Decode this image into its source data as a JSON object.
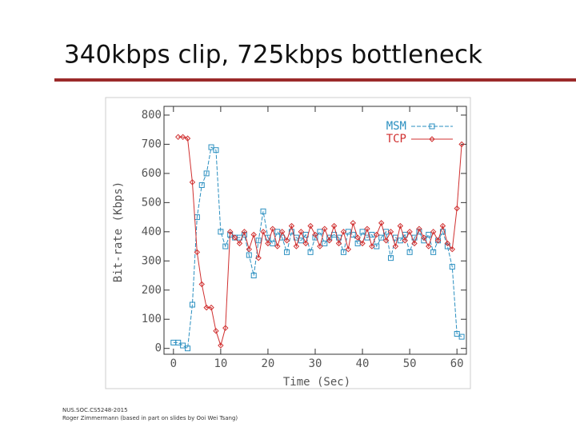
{
  "slide": {
    "title": "340kbps clip, 725kbps bottleneck",
    "footer": [
      "NUS.SOC.CS5248-2015",
      "Roger Zimmermann (based in part on slides by Ooi Wei Tsang)"
    ]
  },
  "chart_data": {
    "type": "line",
    "xlabel": "Time (Sec)",
    "ylabel": "Bit-rate (Kbps)",
    "x": [
      0,
      1,
      2,
      3,
      4,
      5,
      6,
      7,
      8,
      9,
      10,
      11,
      12,
      13,
      14,
      15,
      16,
      17,
      18,
      19,
      20,
      21,
      22,
      23,
      24,
      25,
      26,
      27,
      28,
      29,
      30,
      31,
      32,
      33,
      34,
      35,
      36,
      37,
      38,
      39,
      40,
      41,
      42,
      43,
      44,
      45,
      46,
      47,
      48,
      49,
      50,
      51,
      52,
      53,
      54,
      55,
      56,
      57,
      58,
      59,
      60,
      61
    ],
    "xlim": [
      -2,
      62
    ],
    "xticks": [
      0,
      10,
      20,
      30,
      40,
      50,
      60
    ],
    "ylim": [
      -20,
      830
    ],
    "yticks": [
      0,
      100,
      200,
      300,
      400,
      500,
      600,
      700,
      800
    ],
    "legend": "upper right",
    "series": [
      {
        "name": "MSM",
        "color": "#2a8fc0",
        "marker": "square",
        "values": [
          20,
          20,
          10,
          0,
          150,
          450,
          560,
          600,
          690,
          680,
          400,
          350,
          390,
          380,
          380,
          390,
          320,
          250,
          370,
          470,
          380,
          360,
          400,
          380,
          330,
          400,
          380,
          370,
          390,
          330,
          380,
          400,
          360,
          380,
          390,
          380,
          330,
          400,
          390,
          360,
          400,
          380,
          390,
          350,
          380,
          400,
          310,
          380,
          370,
          390,
          330,
          380,
          400,
          370,
          390,
          330,
          370,
          400,
          350,
          280,
          50,
          40
        ]
      },
      {
        "name": "TCP",
        "color": "#d03030",
        "marker": "diamond",
        "values": [
          null,
          725,
          725,
          720,
          570,
          330,
          220,
          140,
          140,
          60,
          10,
          70,
          400,
          380,
          360,
          400,
          340,
          390,
          310,
          400,
          360,
          410,
          350,
          400,
          370,
          420,
          350,
          400,
          360,
          420,
          390,
          350,
          410,
          370,
          420,
          360,
          400,
          340,
          430,
          380,
          360,
          410,
          350,
          390,
          430,
          370,
          400,
          350,
          420,
          370,
          400,
          360,
          410,
          380,
          350,
          400,
          370,
          420,
          360,
          340,
          480,
          700
        ]
      }
    ]
  }
}
